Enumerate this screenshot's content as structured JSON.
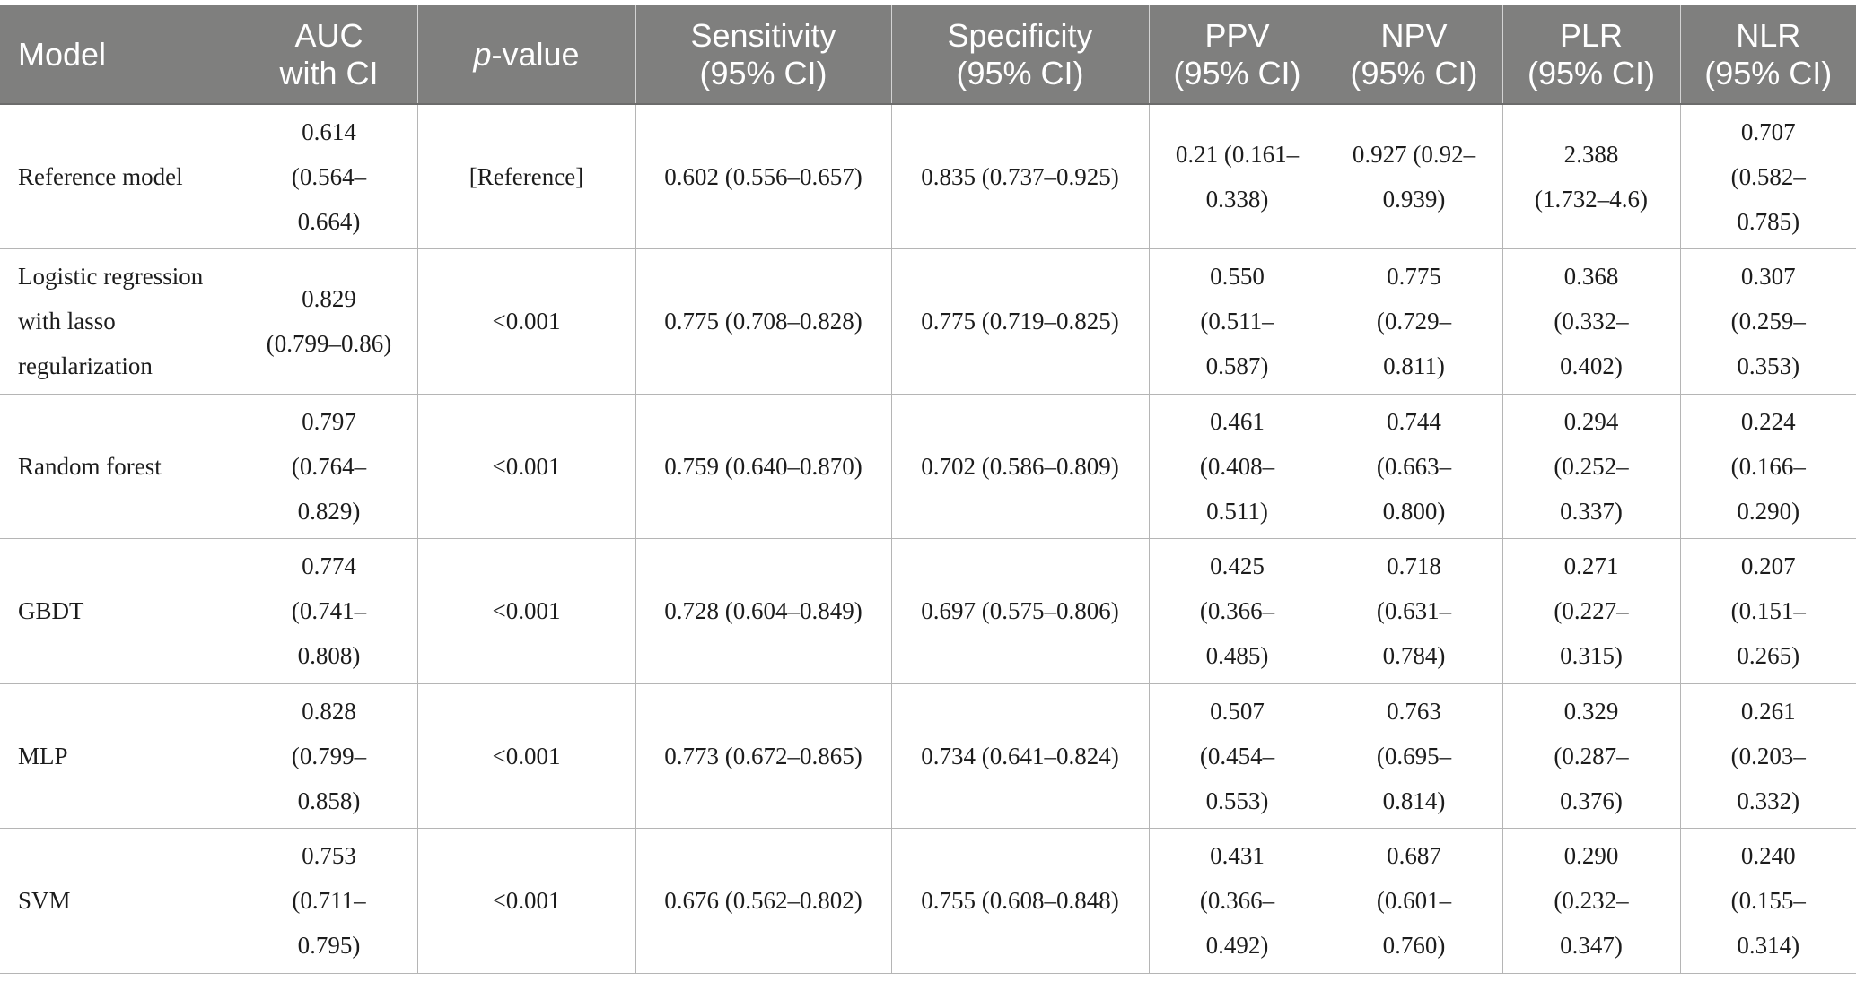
{
  "headers": [
    {
      "lines": [
        "Model"
      ]
    },
    {
      "lines": [
        "AUC",
        "with CI"
      ]
    },
    {
      "lines": [
        "-value"
      ],
      "italic_prefix": "p"
    },
    {
      "lines": [
        "Sensitivity",
        "(95% CI)"
      ]
    },
    {
      "lines": [
        "Specificity",
        "(95% CI)"
      ]
    },
    {
      "lines": [
        "PPV",
        "(95% CI)"
      ]
    },
    {
      "lines": [
        "NPV",
        "(95% CI)"
      ]
    },
    {
      "lines": [
        "PLR",
        "(95% CI)"
      ]
    },
    {
      "lines": [
        "NLR",
        "(95% CI)"
      ]
    }
  ],
  "rows": [
    {
      "model": [
        "Reference model"
      ],
      "auc": [
        "0.614",
        "(0.564–",
        "0.664)"
      ],
      "pvalue": [
        "[Reference]"
      ],
      "sensitivity": [
        "0.602 (0.556–0.657)"
      ],
      "specificity": [
        "0.835 (0.737–0.925)"
      ],
      "ppv": [
        "0.21 (0.161–",
        "0.338)"
      ],
      "npv": [
        "0.927 (0.92–",
        "0.939)"
      ],
      "plr": [
        "2.388",
        "(1.732–4.6)"
      ],
      "nlr": [
        "0.707",
        "(0.582–",
        "0.785)"
      ]
    },
    {
      "model": [
        "Logistic regression",
        "with lasso",
        "regularization"
      ],
      "auc": [
        "0.829",
        "(0.799–0.86)"
      ],
      "pvalue": [
        "<0.001"
      ],
      "sensitivity": [
        "0.775 (0.708–0.828)"
      ],
      "specificity": [
        "0.775 (0.719–0.825)"
      ],
      "ppv": [
        "0.550",
        "(0.511–",
        "0.587)"
      ],
      "npv": [
        "0.775",
        "(0.729–",
        "0.811)"
      ],
      "plr": [
        "0.368",
        "(0.332–",
        "0.402)"
      ],
      "nlr": [
        "0.307",
        "(0.259–",
        "0.353)"
      ]
    },
    {
      "model": [
        "Random forest"
      ],
      "auc": [
        "0.797",
        "(0.764–",
        "0.829)"
      ],
      "pvalue": [
        "<0.001"
      ],
      "sensitivity": [
        "0.759 (0.640–0.870)"
      ],
      "specificity": [
        "0.702 (0.586–0.809)"
      ],
      "ppv": [
        "0.461",
        "(0.408–",
        "0.511)"
      ],
      "npv": [
        "0.744",
        "(0.663–",
        "0.800)"
      ],
      "plr": [
        "0.294",
        "(0.252–",
        "0.337)"
      ],
      "nlr": [
        "0.224",
        "(0.166–",
        "0.290)"
      ]
    },
    {
      "model": [
        "GBDT"
      ],
      "auc": [
        "0.774",
        "(0.741–",
        "0.808)"
      ],
      "pvalue": [
        "<0.001"
      ],
      "sensitivity": [
        "0.728 (0.604–0.849)"
      ],
      "specificity": [
        "0.697 (0.575–0.806)"
      ],
      "ppv": [
        "0.425",
        "(0.366–",
        "0.485)"
      ],
      "npv": [
        "0.718",
        "(0.631–",
        "0.784)"
      ],
      "plr": [
        "0.271",
        "(0.227–",
        "0.315)"
      ],
      "nlr": [
        "0.207",
        "(0.151–",
        "0.265)"
      ]
    },
    {
      "model": [
        "MLP"
      ],
      "auc": [
        "0.828",
        "(0.799–",
        "0.858)"
      ],
      "pvalue": [
        "<0.001"
      ],
      "sensitivity": [
        "0.773 (0.672–0.865)"
      ],
      "specificity": [
        "0.734 (0.641–0.824)"
      ],
      "ppv": [
        "0.507",
        "(0.454–",
        "0.553)"
      ],
      "npv": [
        "0.763",
        "(0.695–",
        "0.814)"
      ],
      "plr": [
        "0.329",
        "(0.287–",
        "0.376)"
      ],
      "nlr": [
        "0.261",
        "(0.203–",
        "0.332)"
      ]
    },
    {
      "model": [
        "SVM"
      ],
      "auc": [
        "0.753",
        "(0.711–",
        "0.795)"
      ],
      "pvalue": [
        "<0.001"
      ],
      "sensitivity": [
        "0.676 (0.562–0.802)"
      ],
      "specificity": [
        "0.755 (0.608–0.848)"
      ],
      "ppv": [
        "0.431",
        "(0.366–",
        "0.492)"
      ],
      "npv": [
        "0.687",
        "(0.601–",
        "0.760)"
      ],
      "plr": [
        "0.290",
        "(0.232–",
        "0.347)"
      ],
      "nlr": [
        "0.240",
        "(0.155–",
        "0.314)"
      ]
    }
  ],
  "colors": {
    "header_bg": "#7f7f7e",
    "header_text": "#ffffff",
    "border": "#b5b5b5",
    "body_text": "#1c1c1c"
  }
}
